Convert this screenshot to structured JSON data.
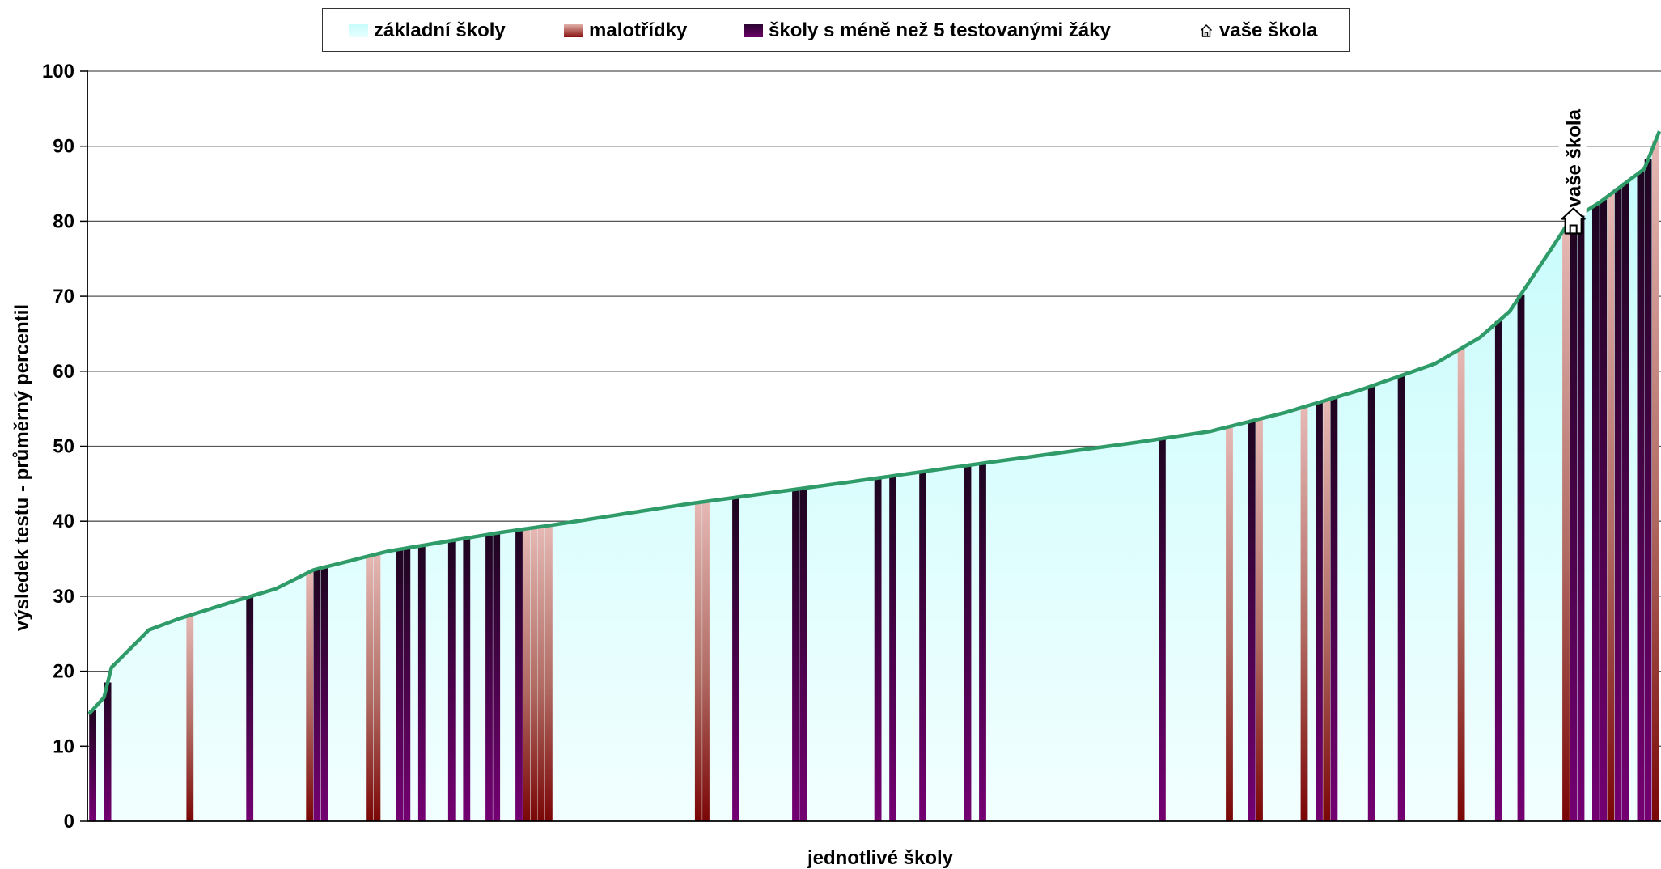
{
  "chart_data": {
    "type": "area",
    "title": "",
    "xlabel": "jednotlivé školy",
    "ylabel": "výsledek testu - průměrný percentil",
    "ylim": [
      0,
      100
    ],
    "yticks": [
      0,
      10,
      20,
      30,
      40,
      50,
      60,
      70,
      80,
      90,
      100
    ],
    "grid": true,
    "legend": {
      "placement": "top",
      "items": [
        {
          "key": "zakladni",
          "label": "základní školy",
          "color": "#ccfefe"
        },
        {
          "key": "malotridky",
          "label": "malotřídky",
          "color": "#c87a76"
        },
        {
          "key": "male",
          "label": "školy s méně než 5 testovanými žáky",
          "color": "#5a0a55"
        },
        {
          "key": "vase",
          "label": "vaše škola",
          "color": "#ffffff",
          "icon": "house-icon"
        }
      ]
    },
    "curve_color": "#2e9b68",
    "n_schools": 210,
    "profile": [
      [
        0,
        14.3
      ],
      [
        2,
        16.5
      ],
      [
        3,
        20.5
      ],
      [
        6,
        23.5
      ],
      [
        8,
        25.5
      ],
      [
        12,
        27.0
      ],
      [
        20,
        29.5
      ],
      [
        25,
        31.0
      ],
      [
        30,
        33.5
      ],
      [
        40,
        36.0
      ],
      [
        55,
        38.5
      ],
      [
        62,
        39.5
      ],
      [
        80,
        42.3
      ],
      [
        100,
        45.0
      ],
      [
        120,
        47.8
      ],
      [
        140,
        50.5
      ],
      [
        150,
        52.0
      ],
      [
        160,
        54.5
      ],
      [
        170,
        57.5
      ],
      [
        180,
        61.0
      ],
      [
        186,
        64.5
      ],
      [
        190,
        68.0
      ],
      [
        192,
        71.0
      ],
      [
        194,
        74.0
      ],
      [
        196,
        77.0
      ],
      [
        198,
        80.0
      ],
      [
        202,
        82.5
      ],
      [
        206,
        85.5
      ],
      [
        208,
        87.0
      ],
      [
        210,
        92.0
      ]
    ],
    "series": [
      {
        "name": "malotřídky",
        "type": "column",
        "x": [
          13,
          29,
          37,
          38,
          58,
          59,
          60,
          61,
          81,
          82,
          152,
          156,
          162,
          165,
          183,
          197,
          203,
          209
        ]
      },
      {
        "name": "školy s méně než 5 testovanými žáky",
        "type": "column",
        "x": [
          0,
          2,
          21,
          30,
          31,
          41,
          42,
          44,
          48,
          50,
          53,
          54,
          57,
          86,
          94,
          95,
          105,
          107,
          111,
          117,
          119,
          143,
          155,
          164,
          166,
          171,
          175,
          188,
          191,
          198,
          199,
          201,
          202,
          204,
          205,
          207,
          208
        ]
      }
    ],
    "your_school": {
      "index": 198,
      "label": "vaše škola"
    }
  }
}
